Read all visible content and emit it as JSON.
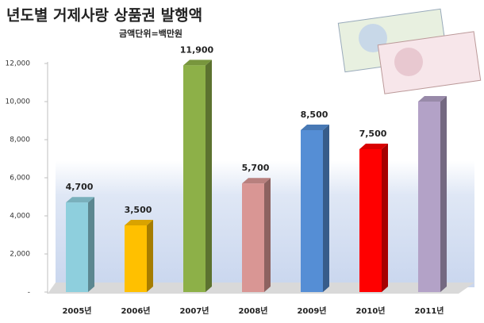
{
  "chart_data": {
    "type": "bar3d",
    "title": "년도별 거제사랑 상품권 발행액",
    "subtitle": "금액단위=백만원",
    "categories": [
      "2005년",
      "2006년",
      "2007년",
      "2008년",
      "2009년",
      "2010년",
      "2011년"
    ],
    "values": [
      4700,
      3500,
      11900,
      5700,
      8500,
      7500,
      10000
    ],
    "value_labels": [
      "4,700",
      "3,500",
      "11,900",
      "5,700",
      "8,500",
      "7,500",
      null
    ],
    "colors": [
      "#8ecfdd",
      "#ffc000",
      "#8db048",
      "#d99694",
      "#558ed5",
      "#ff0000",
      "#b3a2c7"
    ],
    "ylim": [
      0,
      12000
    ],
    "yticks": [
      {
        "value": 0,
        "label": "-"
      },
      {
        "value": 2000,
        "label": "2,000"
      },
      {
        "value": 4000,
        "label": "4,000"
      },
      {
        "value": 6000,
        "label": "6,000"
      },
      {
        "value": 8000,
        "label": "8,000"
      },
      {
        "value": 10000,
        "label": "10,000"
      },
      {
        "value": 12000,
        "label": "12,000"
      }
    ],
    "grid": false
  }
}
